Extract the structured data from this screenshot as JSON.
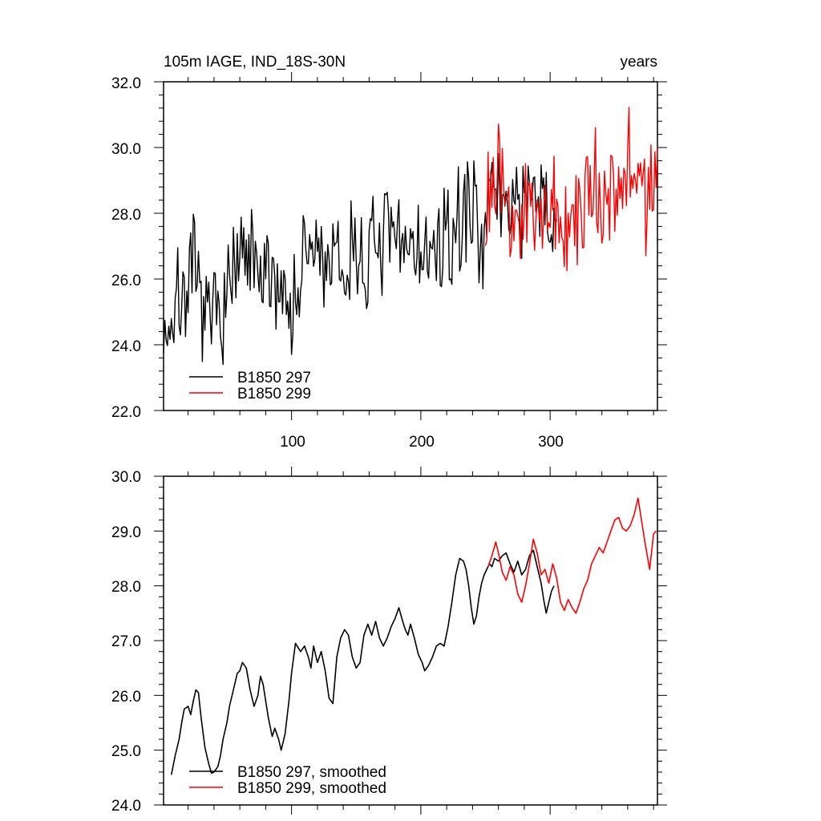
{
  "chart_data": [
    {
      "type": "line",
      "title_left": "105m IAGE, IND_18S-30N",
      "title_right": "years",
      "xlabel": "",
      "ylabel": "",
      "xlim": [
        1,
        383
      ],
      "ylim": [
        22,
        32
      ],
      "xticks": [
        100,
        200,
        300
      ],
      "xtick_labels": [
        "100",
        "200",
        "300"
      ],
      "yticks": [
        22,
        24,
        26,
        28,
        30,
        32
      ],
      "ytick_labels": [
        "22.0",
        "24.0",
        "26.0",
        "28.0",
        "30.0",
        "32.0"
      ],
      "grid": false,
      "legend_position": "bottom-left",
      "series": [
        {
          "name": "B1850 297",
          "color": "#000000",
          "x_start": 1,
          "x_step": 1,
          "anchors_x": [
            1,
            5,
            10,
            15,
            20,
            25,
            30,
            35,
            40,
            45,
            50,
            55,
            60,
            65,
            70,
            75,
            80,
            85,
            90,
            95,
            100,
            105,
            110,
            115,
            120,
            125,
            130,
            135,
            140,
            145,
            150,
            155,
            160,
            165,
            170,
            175,
            180,
            185,
            190,
            195,
            200,
            205,
            210,
            215,
            220,
            225,
            230,
            235,
            240,
            245,
            250,
            255,
            260,
            265,
            270,
            275,
            280,
            285,
            290,
            295,
            300,
            305
          ],
          "anchors_y": [
            24.5,
            24.6,
            25.0,
            25.6,
            25.8,
            26.0,
            25.2,
            24.6,
            24.7,
            25.3,
            25.6,
            26.0,
            26.3,
            26.6,
            26.3,
            25.9,
            25.7,
            26.2,
            26.0,
            25.5,
            25.2,
            25.5,
            26.5,
            26.9,
            26.8,
            26.5,
            26.6,
            26.2,
            25.9,
            26.7,
            27.0,
            26.6,
            26.5,
            26.9,
            27.2,
            27.1,
            26.9,
            27.0,
            27.3,
            27.2,
            26.8,
            26.5,
            26.7,
            27.0,
            26.9,
            27.2,
            27.6,
            28.2,
            28.3,
            27.6,
            28.0,
            28.3,
            28.5,
            28.3,
            28.4,
            28.5,
            28.3,
            28.0,
            28.3,
            28.0,
            27.8,
            28.1
          ],
          "noise_amplitude": 1.3,
          "seed": 7
        },
        {
          "name": "B1850 299",
          "color": "#ff0000",
          "x_start": 250,
          "x_step": 1,
          "anchors_x": [
            250,
            255,
            260,
            265,
            270,
            275,
            280,
            285,
            290,
            295,
            300,
            305,
            310,
            315,
            320,
            325,
            330,
            335,
            340,
            345,
            350,
            355,
            360,
            365,
            370,
            375,
            380,
            383
          ],
          "anchors_y": [
            28.3,
            28.6,
            28.7,
            28.2,
            28.1,
            27.8,
            27.7,
            28.1,
            28.6,
            28.2,
            28.3,
            27.7,
            27.6,
            27.8,
            28.1,
            28.3,
            28.6,
            28.7,
            28.5,
            28.8,
            29.1,
            29.0,
            29.2,
            29.0,
            28.9,
            28.6,
            29.1,
            28.8
          ],
          "noise_amplitude": 1.4,
          "seed": 23
        }
      ]
    },
    {
      "type": "line",
      "xlim": [
        1,
        383
      ],
      "ylim": [
        24,
        30
      ],
      "xticks": [
        100,
        200,
        300
      ],
      "yticks": [
        24,
        25,
        26,
        27,
        28,
        29,
        30
      ],
      "ytick_labels": [
        "24.0",
        "25.0",
        "26.0",
        "27.0",
        "28.0",
        "29.0",
        "30.0"
      ],
      "grid": false,
      "legend_position": "bottom-left",
      "series": [
        {
          "name": "B1850 297, smoothed",
          "color": "#000000",
          "x": [
            7,
            10,
            13,
            15,
            17,
            20,
            22,
            24,
            26,
            28,
            30,
            33,
            36,
            38,
            40,
            43,
            45,
            47,
            50,
            52,
            55,
            58,
            60,
            62,
            65,
            68,
            71,
            74,
            76,
            78,
            80,
            82,
            85,
            87,
            90,
            92,
            95,
            98,
            100,
            103,
            107,
            110,
            113,
            115,
            117,
            120,
            123,
            126,
            129,
            132,
            135,
            138,
            141,
            144,
            147,
            150,
            153,
            156,
            159,
            162,
            165,
            168,
            171,
            174,
            177,
            180,
            183,
            186,
            188,
            190,
            192,
            195,
            198,
            201,
            203,
            206,
            209,
            212,
            215,
            218,
            221,
            224,
            227,
            230,
            233,
            235,
            237,
            239,
            241,
            243,
            245,
            247,
            249,
            251,
            253,
            255,
            257,
            260,
            263,
            266,
            269,
            272,
            275,
            278,
            281,
            284,
            287,
            290,
            293,
            295,
            297,
            299,
            301,
            303
          ],
          "y": [
            24.55,
            24.9,
            25.2,
            25.5,
            25.75,
            25.8,
            25.65,
            25.9,
            26.1,
            26.05,
            25.6,
            25.05,
            24.75,
            24.58,
            24.6,
            24.7,
            24.9,
            25.2,
            25.5,
            25.8,
            26.1,
            26.4,
            26.45,
            26.6,
            26.5,
            26.1,
            25.8,
            26.0,
            26.35,
            26.2,
            25.9,
            25.6,
            25.25,
            25.4,
            25.2,
            25.0,
            25.3,
            25.9,
            26.4,
            26.95,
            26.8,
            26.9,
            26.7,
            26.5,
            26.9,
            26.6,
            26.8,
            26.45,
            25.95,
            25.85,
            26.7,
            27.05,
            27.2,
            27.1,
            26.7,
            26.5,
            26.6,
            27.1,
            27.3,
            27.1,
            27.35,
            27.05,
            26.9,
            27.05,
            27.25,
            27.4,
            27.6,
            27.35,
            27.2,
            27.1,
            27.3,
            27.05,
            26.75,
            26.6,
            26.45,
            26.55,
            26.7,
            26.9,
            26.95,
            26.9,
            27.25,
            27.7,
            28.2,
            28.5,
            28.45,
            28.3,
            28.0,
            27.6,
            27.3,
            27.45,
            27.8,
            28.05,
            28.2,
            28.3,
            28.4,
            28.35,
            28.5,
            28.45,
            28.55,
            28.6,
            28.4,
            28.25,
            28.45,
            28.2,
            28.3,
            28.55,
            28.65,
            28.35,
            28.05,
            27.75,
            27.5,
            27.7,
            27.9,
            28.0
          ]
        },
        {
          "name": "B1850 299, smoothed",
          "color": "#ff0000",
          "x": [
            252,
            255,
            258,
            260,
            263,
            266,
            269,
            272,
            275,
            278,
            281,
            284,
            287,
            290,
            293,
            296,
            299,
            302,
            305,
            308,
            311,
            314,
            317,
            320,
            323,
            326,
            329,
            332,
            335,
            338,
            341,
            344,
            347,
            350,
            353,
            356,
            359,
            362,
            365,
            368,
            371,
            374,
            377,
            380,
            382
          ],
          "y": [
            28.35,
            28.55,
            28.8,
            28.6,
            28.25,
            28.1,
            28.35,
            28.2,
            27.85,
            27.7,
            28.0,
            28.4,
            28.85,
            28.6,
            28.2,
            28.3,
            28.05,
            28.4,
            28.15,
            27.7,
            27.55,
            27.75,
            27.6,
            27.5,
            27.7,
            27.95,
            28.1,
            28.4,
            28.55,
            28.7,
            28.6,
            28.8,
            29.0,
            29.2,
            29.25,
            29.05,
            29.0,
            29.1,
            29.3,
            29.6,
            29.15,
            28.7,
            28.3,
            28.95,
            29.0
          ]
        }
      ]
    }
  ]
}
